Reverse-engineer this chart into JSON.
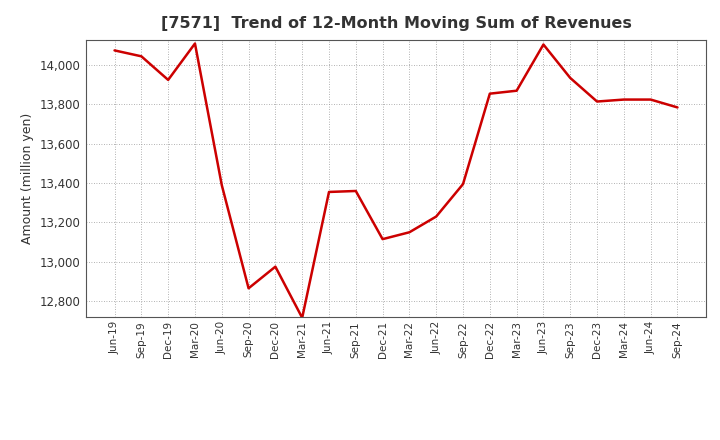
{
  "title": "[7571]  Trend of 12-Month Moving Sum of Revenues",
  "ylabel": "Amount (million yen)",
  "line_color": "#cc0000",
  "background_color": "#ffffff",
  "plot_bg_color": "#ffffff",
  "grid_color": "#999999",
  "title_color": "#333333",
  "ylim": [
    12720,
    14130
  ],
  "yticks": [
    12800,
    13000,
    13200,
    13400,
    13600,
    13800,
    14000
  ],
  "dates": [
    "Jun-19",
    "Sep-19",
    "Dec-19",
    "Mar-20",
    "Jun-20",
    "Sep-20",
    "Dec-20",
    "Mar-21",
    "Jun-21",
    "Sep-21",
    "Dec-21",
    "Mar-22",
    "Jun-22",
    "Sep-22",
    "Dec-22",
    "Mar-23",
    "Jun-23",
    "Sep-23",
    "Dec-23",
    "Mar-24",
    "Jun-24",
    "Sep-24"
  ],
  "values": [
    14075,
    14045,
    13925,
    14110,
    13390,
    12865,
    12975,
    12715,
    13355,
    13360,
    13115,
    13150,
    13230,
    13395,
    13855,
    13870,
    14105,
    13935,
    13815,
    13825,
    13825,
    13785
  ]
}
